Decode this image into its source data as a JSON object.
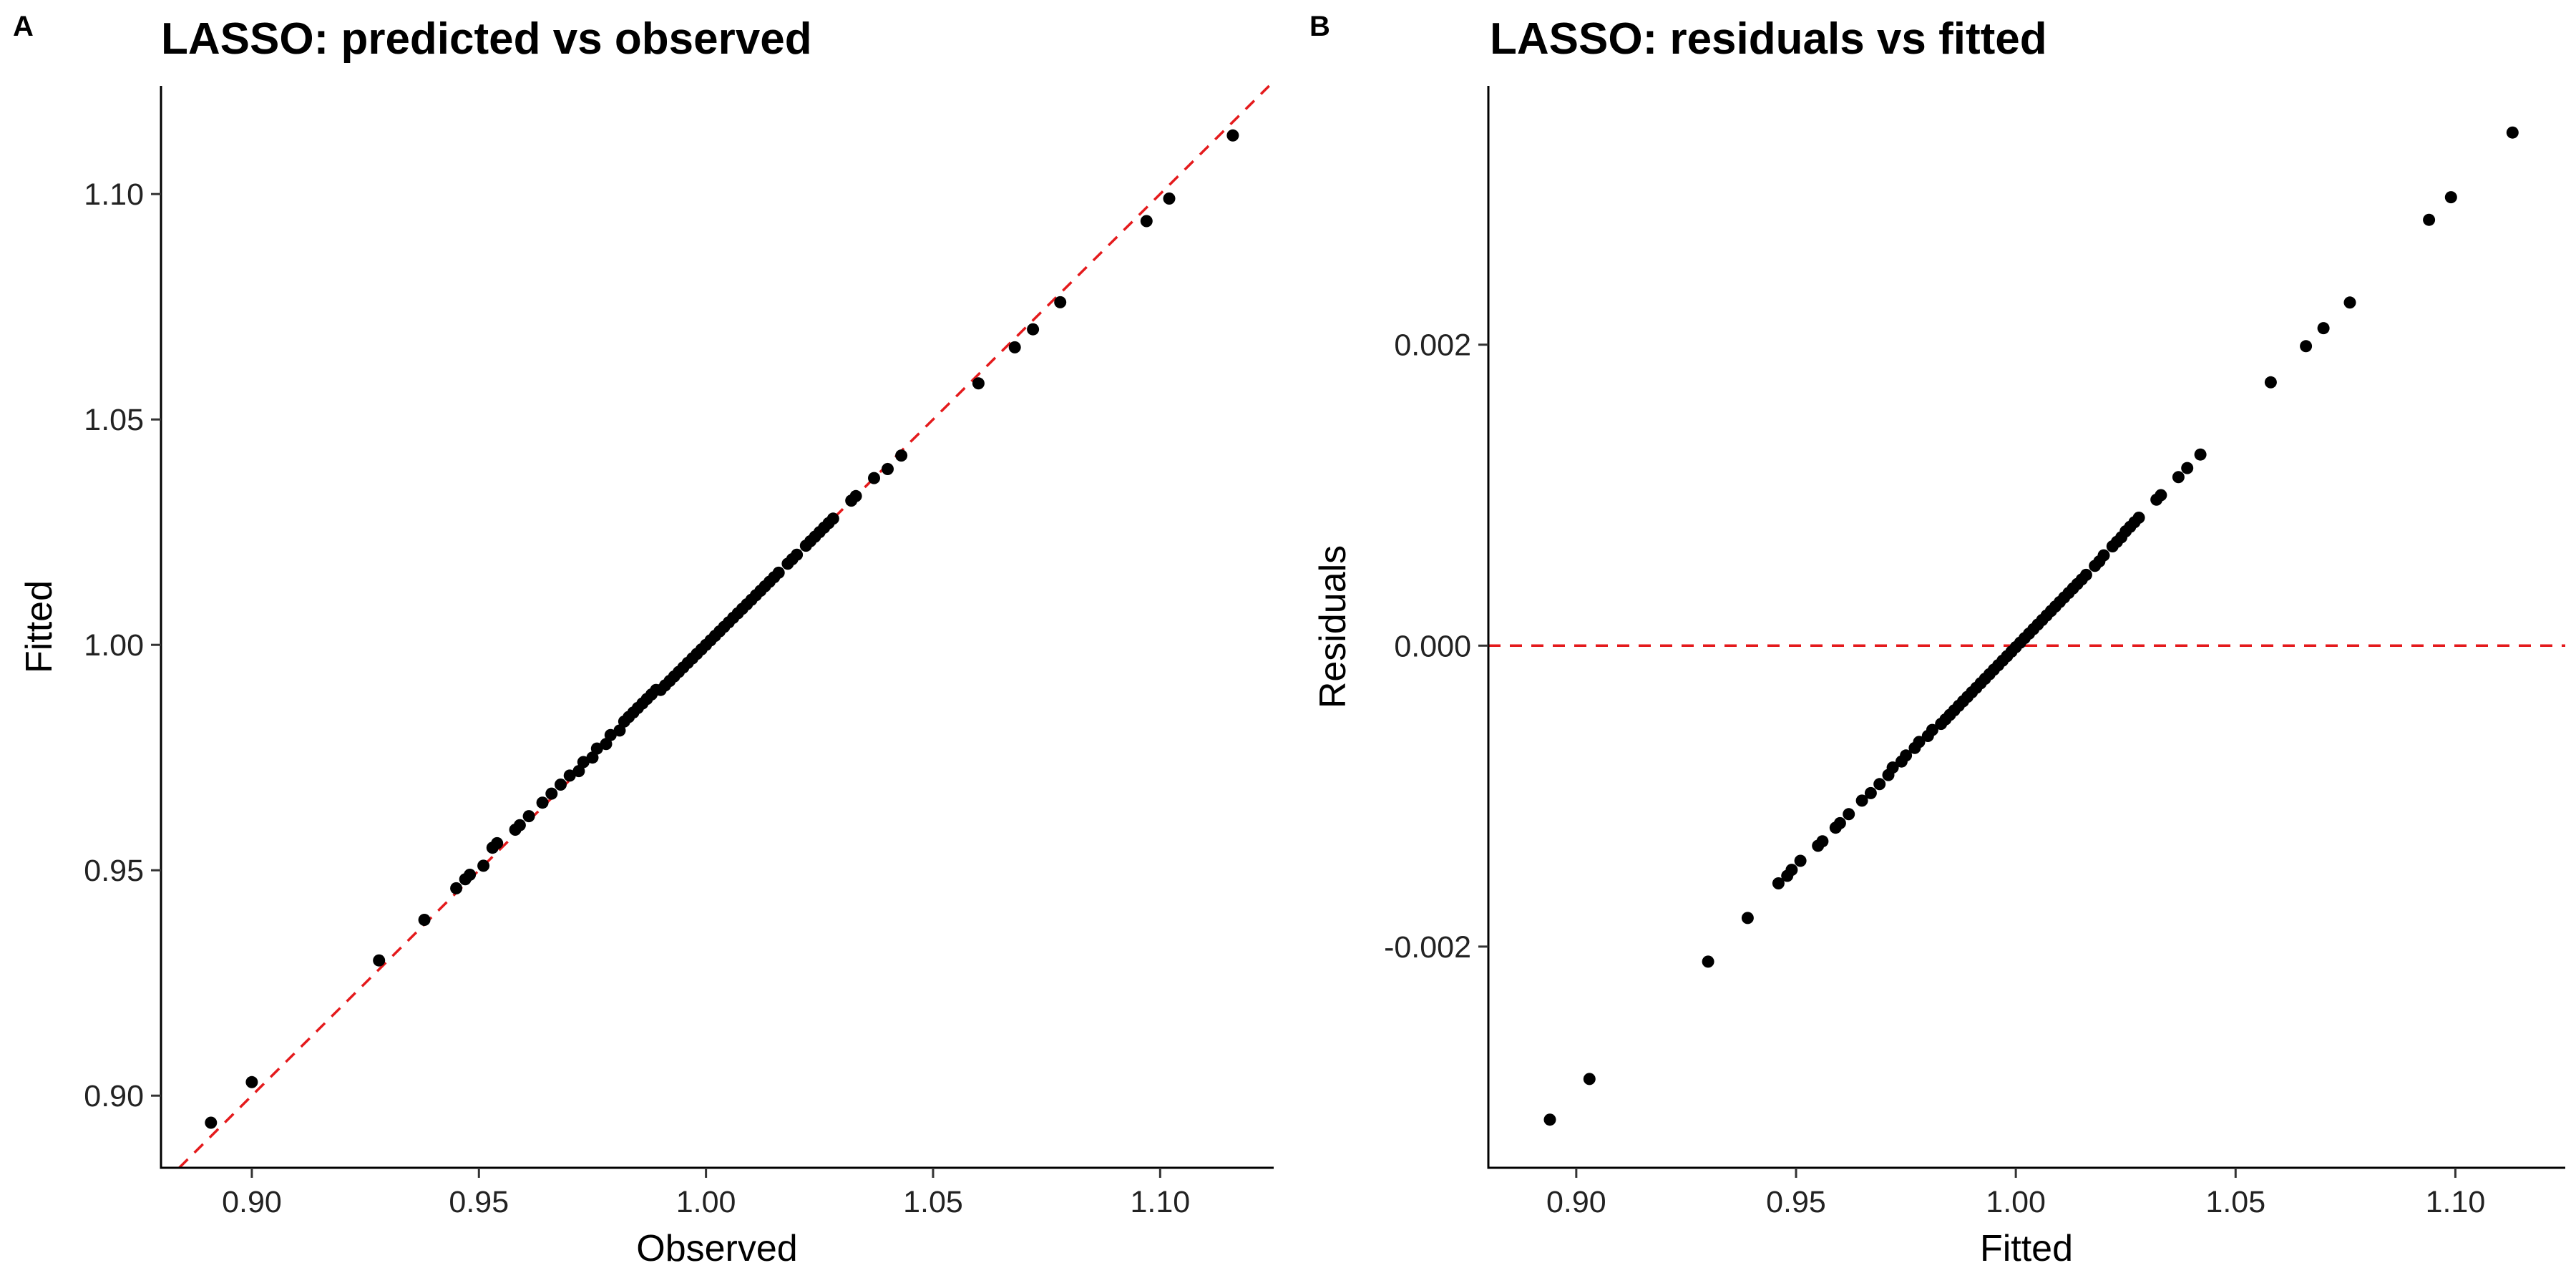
{
  "chart_data": [
    {
      "panel": "A",
      "type": "scatter",
      "title": "LASSO: predicted vs observed",
      "xlabel": "Observed",
      "ylabel": "Fitted",
      "xlim": [
        0.88,
        1.125
      ],
      "ylim": [
        0.884,
        1.124
      ],
      "xticks": [
        0.9,
        0.95,
        1.0,
        1.05,
        1.1
      ],
      "xtick_labels": [
        "0.90",
        "0.95",
        "1.00",
        "1.05",
        "1.10"
      ],
      "yticks": [
        0.9,
        0.95,
        1.0,
        1.05,
        1.1
      ],
      "ytick_labels": [
        "0.90",
        "0.95",
        "1.00",
        "1.05",
        "1.10"
      ],
      "grid": false,
      "reference_line": {
        "kind": "identity",
        "color": "#e41a1c",
        "style": "dashed"
      },
      "points": [
        [
          0.891,
          0.894
        ],
        [
          0.9,
          0.903
        ],
        [
          0.928,
          0.93
        ],
        [
          0.938,
          0.939
        ],
        [
          0.945,
          0.946
        ],
        [
          0.947,
          0.948
        ],
        [
          0.948,
          0.949
        ],
        [
          0.951,
          0.951
        ],
        [
          0.953,
          0.955
        ],
        [
          0.954,
          0.956
        ],
        [
          0.958,
          0.959
        ],
        [
          0.959,
          0.96
        ],
        [
          0.961,
          0.962
        ],
        [
          0.964,
          0.965
        ],
        [
          0.966,
          0.967
        ],
        [
          0.968,
          0.969
        ],
        [
          0.97,
          0.971
        ],
        [
          0.972,
          0.972
        ],
        [
          0.973,
          0.974
        ],
        [
          0.975,
          0.975
        ],
        [
          0.976,
          0.977
        ],
        [
          0.978,
          0.978
        ],
        [
          0.979,
          0.98
        ],
        [
          0.981,
          0.981
        ],
        [
          0.982,
          0.983
        ],
        [
          0.983,
          0.984
        ],
        [
          0.984,
          0.985
        ],
        [
          0.985,
          0.986
        ],
        [
          0.986,
          0.987
        ],
        [
          0.987,
          0.988
        ],
        [
          0.988,
          0.989
        ],
        [
          0.989,
          0.99
        ],
        [
          0.99,
          0.99
        ],
        [
          0.991,
          0.991
        ],
        [
          0.992,
          0.992
        ],
        [
          0.993,
          0.993
        ],
        [
          0.994,
          0.994
        ],
        [
          0.995,
          0.995
        ],
        [
          0.996,
          0.996
        ],
        [
          0.997,
          0.997
        ],
        [
          0.998,
          0.998
        ],
        [
          0.999,
          0.999
        ],
        [
          1.0,
          1.0
        ],
        [
          1.001,
          1.001
        ],
        [
          1.002,
          1.002
        ],
        [
          1.003,
          1.003
        ],
        [
          1.004,
          1.004
        ],
        [
          1.005,
          1.005
        ],
        [
          1.006,
          1.006
        ],
        [
          1.007,
          1.007
        ],
        [
          1.008,
          1.008
        ],
        [
          1.009,
          1.009
        ],
        [
          1.01,
          1.01
        ],
        [
          1.011,
          1.011
        ],
        [
          1.012,
          1.012
        ],
        [
          1.013,
          1.013
        ],
        [
          1.014,
          1.014
        ],
        [
          1.015,
          1.015
        ],
        [
          1.016,
          1.016
        ],
        [
          1.018,
          1.018
        ],
        [
          1.019,
          1.019
        ],
        [
          1.02,
          1.02
        ],
        [
          1.022,
          1.022
        ],
        [
          1.023,
          1.023
        ],
        [
          1.024,
          1.024
        ],
        [
          1.025,
          1.025
        ],
        [
          1.026,
          1.026
        ],
        [
          1.027,
          1.027
        ],
        [
          1.028,
          1.028
        ],
        [
          1.032,
          1.032
        ],
        [
          1.033,
          1.033
        ],
        [
          1.037,
          1.037
        ],
        [
          1.04,
          1.039
        ],
        [
          1.043,
          1.042
        ],
        [
          1.06,
          1.058
        ],
        [
          1.068,
          1.066
        ],
        [
          1.072,
          1.07
        ],
        [
          1.078,
          1.076
        ],
        [
          1.097,
          1.094
        ],
        [
          1.102,
          1.099
        ],
        [
          1.116,
          1.113
        ]
      ]
    },
    {
      "panel": "B",
      "type": "scatter",
      "title": "LASSO: residuals vs fitted",
      "xlabel": "Fitted",
      "ylabel": "Residuals",
      "xlim": [
        0.88,
        1.125
      ],
      "ylim": [
        -0.00347,
        0.00372
      ],
      "xticks": [
        0.9,
        0.95,
        1.0,
        1.05,
        1.1
      ],
      "xtick_labels": [
        "0.90",
        "0.95",
        "1.00",
        "1.05",
        "1.10"
      ],
      "yticks": [
        -0.002,
        0.0,
        0.002
      ],
      "ytick_labels": [
        "-0.002",
        "0.000",
        "0.002"
      ],
      "grid": false,
      "reference_line": {
        "kind": "horizontal",
        "y": 0,
        "color": "#e41a1c",
        "style": "dashed"
      },
      "points": [
        [
          0.894,
          -0.00315
        ],
        [
          0.903,
          -0.00288
        ],
        [
          0.93,
          -0.0021
        ],
        [
          0.939,
          -0.00181
        ],
        [
          0.946,
          -0.00158
        ],
        [
          0.948,
          -0.00153
        ],
        [
          0.949,
          -0.00149
        ],
        [
          0.951,
          -0.00143
        ],
        [
          0.955,
          -0.00133
        ],
        [
          0.956,
          -0.0013
        ],
        [
          0.959,
          -0.00121
        ],
        [
          0.96,
          -0.00118
        ],
        [
          0.962,
          -0.00112
        ],
        [
          0.965,
          -0.00103
        ],
        [
          0.967,
          -0.00098
        ],
        [
          0.969,
          -0.00092
        ],
        [
          0.971,
          -0.00086
        ],
        [
          0.972,
          -0.00081
        ],
        [
          0.974,
          -0.00077
        ],
        [
          0.975,
          -0.00073
        ],
        [
          0.977,
          -0.00068
        ],
        [
          0.978,
          -0.00064
        ],
        [
          0.98,
          -0.0006
        ],
        [
          0.981,
          -0.00056
        ],
        [
          0.983,
          -0.00052
        ],
        [
          0.984,
          -0.00049
        ],
        [
          0.985,
          -0.00046
        ],
        [
          0.986,
          -0.00043
        ],
        [
          0.987,
          -0.0004
        ],
        [
          0.988,
          -0.00037
        ],
        [
          0.989,
          -0.00034
        ],
        [
          0.99,
          -0.00031
        ],
        [
          0.991,
          -0.00028
        ],
        [
          0.992,
          -0.00025
        ],
        [
          0.993,
          -0.00022
        ],
        [
          0.994,
          -0.00019
        ],
        [
          0.995,
          -0.00016
        ],
        [
          0.996,
          -0.00013
        ],
        [
          0.997,
          -0.0001
        ],
        [
          0.998,
          -7e-05
        ],
        [
          0.999,
          -4e-05
        ],
        [
          1.0,
          -1e-05
        ],
        [
          1.001,
          2e-05
        ],
        [
          1.002,
          5e-05
        ],
        [
          1.003,
          8e-05
        ],
        [
          1.004,
          0.00011
        ],
        [
          1.005,
          0.00014
        ],
        [
          1.006,
          0.00017
        ],
        [
          1.007,
          0.0002
        ],
        [
          1.008,
          0.00023
        ],
        [
          1.009,
          0.00026
        ],
        [
          1.01,
          0.00029
        ],
        [
          1.011,
          0.00032
        ],
        [
          1.012,
          0.00035
        ],
        [
          1.013,
          0.00038
        ],
        [
          1.014,
          0.00041
        ],
        [
          1.015,
          0.00044
        ],
        [
          1.016,
          0.00047
        ],
        [
          1.018,
          0.00053
        ],
        [
          1.019,
          0.00056
        ],
        [
          1.02,
          0.0006
        ],
        [
          1.022,
          0.00066
        ],
        [
          1.023,
          0.00069
        ],
        [
          1.024,
          0.00072
        ],
        [
          1.025,
          0.00076
        ],
        [
          1.026,
          0.00079
        ],
        [
          1.027,
          0.00082
        ],
        [
          1.028,
          0.00085
        ],
        [
          1.032,
          0.00097
        ],
        [
          1.033,
          0.001
        ],
        [
          1.037,
          0.00112
        ],
        [
          1.039,
          0.00118
        ],
        [
          1.042,
          0.00127
        ],
        [
          1.058,
          0.00175
        ],
        [
          1.066,
          0.00199
        ],
        [
          1.07,
          0.00211
        ],
        [
          1.076,
          0.00228
        ],
        [
          1.094,
          0.00283
        ],
        [
          1.099,
          0.00298
        ],
        [
          1.113,
          0.00341
        ]
      ]
    }
  ]
}
